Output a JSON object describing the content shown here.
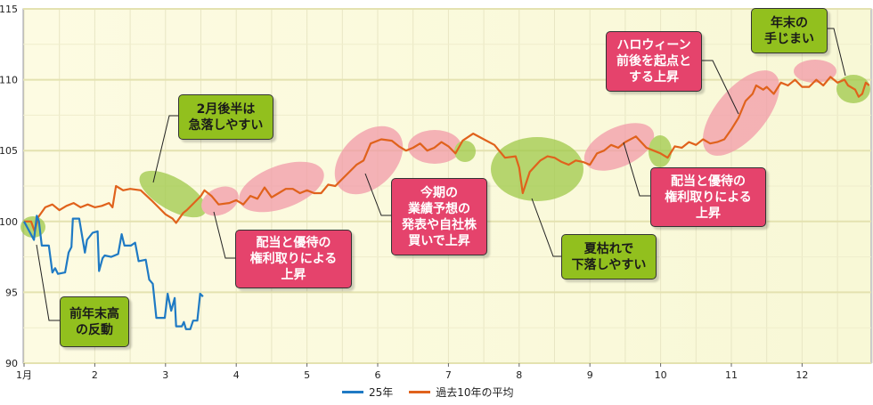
{
  "chart_data": {
    "type": "line",
    "title": "",
    "xlabel": "",
    "ylabel": "",
    "x_tick_labels": [
      "1月",
      "2",
      "3",
      "4",
      "5",
      "6",
      "7",
      "8",
      "9",
      "10",
      "11",
      "12"
    ],
    "y_ticks": [
      90,
      95,
      100,
      105,
      110,
      115
    ],
    "ylim": [
      90,
      115
    ],
    "xlim": [
      1,
      13
    ],
    "grid": true,
    "legend_position": "bottom",
    "series": [
      {
        "name": "25年",
        "color": "#1f7ac4",
        "x": [
          1.0,
          1.14,
          1.18,
          1.21,
          1.25,
          1.35,
          1.4,
          1.44,
          1.48,
          1.58,
          1.63,
          1.67,
          1.69,
          1.78,
          1.86,
          1.89,
          1.97,
          2.04,
          2.06,
          2.11,
          2.14,
          2.23,
          2.33,
          2.38,
          2.42,
          2.51,
          2.57,
          2.62,
          2.72,
          2.77,
          2.82,
          2.87,
          2.99,
          3.03,
          3.08,
          3.13,
          3.15,
          3.23,
          3.26,
          3.29,
          3.35,
          3.39,
          3.45,
          3.49,
          3.53
        ],
        "values": [
          100,
          98.7,
          100.4,
          100,
          98.3,
          98.3,
          96.4,
          96.7,
          96.3,
          96.4,
          97.8,
          98.2,
          100.2,
          100.2,
          97.8,
          98.7,
          99.2,
          99.3,
          96.5,
          97.4,
          97.6,
          97.5,
          97.7,
          99.1,
          98.3,
          98.3,
          98.5,
          97.2,
          97.3,
          95.9,
          95.6,
          93.2,
          93.2,
          94.9,
          93.7,
          94.6,
          92.6,
          92.6,
          92.9,
          92.4,
          92.4,
          93.0,
          93.0,
          94.9,
          94.7
        ]
      },
      {
        "name": "過去10年の平均",
        "color": "#e0621c",
        "x": [
          1.0,
          1.1,
          1.15,
          1.2,
          1.3,
          1.4,
          1.5,
          1.6,
          1.7,
          1.8,
          1.9,
          2.0,
          2.1,
          2.2,
          2.25,
          2.3,
          2.4,
          2.5,
          2.65,
          2.8,
          2.9,
          3.0,
          3.1,
          3.15,
          3.25,
          3.3,
          3.4,
          3.5,
          3.55,
          3.65,
          3.75,
          3.9,
          4.0,
          4.1,
          4.2,
          4.3,
          4.4,
          4.5,
          4.6,
          4.7,
          4.8,
          4.9,
          5.0,
          5.1,
          5.2,
          5.3,
          5.4,
          5.5,
          5.6,
          5.7,
          5.8,
          5.9,
          6.05,
          6.2,
          6.3,
          6.4,
          6.5,
          6.6,
          6.7,
          6.8,
          6.9,
          7.0,
          7.1,
          7.2,
          7.35,
          7.5,
          7.65,
          7.8,
          7.95,
          8.0,
          8.05,
          8.15,
          8.3,
          8.4,
          8.5,
          8.6,
          8.7,
          8.8,
          8.9,
          9.0,
          9.1,
          9.2,
          9.3,
          9.4,
          9.5,
          9.65,
          9.8,
          9.9,
          10.0,
          10.1,
          10.2,
          10.3,
          10.4,
          10.5,
          10.6,
          10.7,
          10.8,
          10.9,
          11.0,
          11.1,
          11.2,
          11.3,
          11.35,
          11.45,
          11.5,
          11.6,
          11.7,
          11.8,
          11.9,
          12.0,
          12.1,
          12.2,
          12.3,
          12.4,
          12.5,
          12.6,
          12.65,
          12.75,
          12.8,
          12.85,
          12.9,
          12.95
        ],
        "values": [
          100,
          100,
          99.3,
          100.3,
          101,
          101.2,
          100.8,
          101.1,
          101.3,
          101,
          101.2,
          101,
          101.1,
          101.3,
          101,
          102.5,
          102.2,
          102.3,
          102.2,
          101.5,
          101.0,
          100.5,
          100.2,
          99.9,
          100.6,
          100.8,
          101.3,
          101.8,
          102.2,
          101.8,
          101.2,
          101.3,
          101.5,
          101.2,
          101.8,
          101.6,
          102.4,
          101.7,
          102.0,
          102.3,
          102.3,
          102.0,
          102.2,
          102.0,
          102.0,
          102.6,
          102.5,
          103.0,
          103.5,
          104.0,
          104.3,
          105.5,
          105.8,
          105.7,
          105.3,
          105.0,
          105.2,
          105.5,
          105.0,
          105.2,
          105.6,
          105.3,
          104.8,
          105.7,
          106.2,
          105.8,
          105.4,
          104.5,
          104.6,
          103.8,
          102.0,
          103.5,
          104.3,
          104.6,
          104.5,
          104.2,
          104.0,
          104.3,
          104.2,
          104.0,
          104.8,
          105.0,
          105.4,
          105.2,
          105.6,
          106.0,
          105.2,
          105.0,
          104.8,
          104.5,
          105.3,
          105.2,
          105.6,
          105.4,
          105.8,
          105.5,
          105.6,
          105.8,
          106.5,
          107.3,
          108.5,
          109.0,
          109.6,
          109.3,
          109.5,
          109.0,
          109.8,
          109.6,
          110.0,
          109.5,
          109.5,
          110.0,
          109.6,
          110.2,
          109.8,
          110.0,
          109.6,
          109.3,
          108.8,
          109.0,
          109.8,
          109.6
        ]
      }
    ],
    "annotations": [
      {
        "id": "a1",
        "tone": "green",
        "lines": [
          "前年末高",
          "の反動"
        ]
      },
      {
        "id": "a2",
        "tone": "green",
        "lines": [
          "2月後半は",
          "急落しやすい"
        ]
      },
      {
        "id": "a3",
        "tone": "pink",
        "lines": [
          "配当と優待の",
          "権利取りによる",
          "上昇"
        ]
      },
      {
        "id": "a4",
        "tone": "pink",
        "lines": [
          "今期の",
          "業績予想の",
          "発表や自社株",
          "買いで上昇"
        ]
      },
      {
        "id": "a5",
        "tone": "green",
        "lines": [
          "夏枯れで",
          "下落しやすい"
        ]
      },
      {
        "id": "a6",
        "tone": "pink",
        "lines": [
          "配当と優待の",
          "権利取りによる",
          "上昇"
        ]
      },
      {
        "id": "a7",
        "tone": "pink",
        "lines": [
          "ハロウィーン",
          "前後を起点と",
          "する上昇"
        ]
      },
      {
        "id": "a8",
        "tone": "green",
        "lines": [
          "年末の",
          "手じまい"
        ]
      }
    ],
    "colors": {
      "green_box": "#92c01e",
      "pink_box": "#e5436c",
      "green_highlight": "#9fc84a",
      "pink_highlight": "#f29aa8",
      "plot_bg": "#fdfbe0"
    }
  }
}
